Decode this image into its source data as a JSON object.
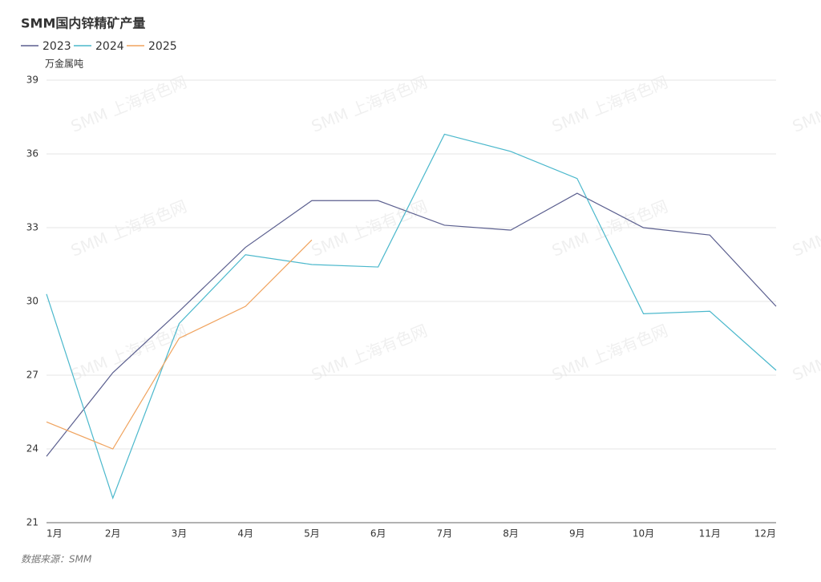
{
  "chart_data": {
    "type": "line",
    "title": "SMM国内锌精矿产量",
    "y_label": "万金属吨",
    "source": "数据来源：SMM",
    "watermark": "SMM 上海有色网",
    "categories": [
      "1月",
      "2月",
      "3月",
      "4月",
      "5月",
      "6月",
      "7月",
      "8月",
      "9月",
      "10月",
      "11月",
      "12月"
    ],
    "series": [
      {
        "name": "2023",
        "color": "#5b5f8f",
        "values": [
          23.7,
          27.1,
          29.6,
          32.2,
          34.1,
          34.1,
          33.1,
          32.9,
          34.4,
          33.0,
          32.7,
          29.8
        ]
      },
      {
        "name": "2024",
        "color": "#4bb8cc",
        "values": [
          30.3,
          22.0,
          29.1,
          31.9,
          31.5,
          31.4,
          36.8,
          36.1,
          35.0,
          29.5,
          29.6,
          27.2
        ]
      },
      {
        "name": "2025",
        "color": "#f0a35e",
        "values": [
          25.1,
          24.0,
          28.5,
          29.8,
          32.5,
          null,
          null,
          null,
          null,
          null,
          null,
          null
        ]
      }
    ],
    "ylim": [
      21,
      39
    ],
    "yticks": [
      21,
      24,
      27,
      30,
      33,
      36,
      39
    ],
    "grid": true,
    "legend": "top-left"
  }
}
